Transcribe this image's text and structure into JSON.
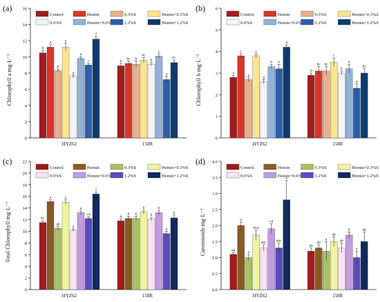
{
  "chart_data": [
    {
      "type": "bar",
      "panel_label": "(a)",
      "ylabel": "Chlorophyll a  mg·L⁻¹",
      "xlabel": "",
      "ylim": [
        0,
        16
      ],
      "yticks": [
        0,
        2,
        4,
        6,
        8,
        10,
        12,
        14,
        16
      ],
      "categories": [
        "HYZ62",
        "158R"
      ],
      "series": [
        {
          "name": "Control",
          "color": "#a31b1b",
          "values": [
            10.5,
            8.9
          ],
          "errors": [
            0.3,
            0.3
          ],
          "letters": [
            "d",
            "b"
          ]
        },
        {
          "name": "Hemin",
          "color": "#d9362b",
          "values": [
            11.2,
            9.2
          ],
          "errors": [
            0.3,
            0.3
          ],
          "letters": [
            "e",
            "bc"
          ]
        },
        {
          "name": "0.3%S",
          "color": "#e9b08a",
          "values": [
            8.3,
            9.1
          ],
          "errors": [
            0.2,
            0.4
          ],
          "letters": [
            "b",
            "b"
          ]
        },
        {
          "name": "Hemin+0.3%S",
          "color": "#fce58e",
          "values": [
            11.2,
            9.6
          ],
          "errors": [
            0.5,
            0.3
          ],
          "letters": [
            "e",
            "bc"
          ]
        },
        {
          "name": "0.6%S",
          "color": "#f0f5fa",
          "values": [
            7.6,
            9.1
          ],
          "errors": [
            0.2,
            0.2
          ],
          "letters": [
            "a",
            "b"
          ]
        },
        {
          "name": "Hemin+0.6%S",
          "color": "#92b2d9",
          "values": [
            9.8,
            10.1
          ],
          "errors": [
            0.2,
            0.3
          ],
          "letters": [
            "d",
            "c"
          ]
        },
        {
          "name": "1.2%S",
          "color": "#2e5fae",
          "values": [
            9.0,
            7.2
          ],
          "errors": [
            0.2,
            0.4
          ],
          "letters": [
            "c",
            "a"
          ]
        },
        {
          "name": "Hemin+1.2%S",
          "color": "#0d3b6d",
          "values": [
            12.2,
            9.3
          ],
          "errors": [
            0.3,
            0.3
          ],
          "letters": [
            "f",
            "bc"
          ]
        }
      ]
    },
    {
      "type": "bar",
      "panel_label": "(b)",
      "ylabel": "Chlorophyll b  mg·L⁻¹",
      "xlabel": "",
      "ylim": [
        0,
        6
      ],
      "yticks": [
        0,
        1,
        2,
        3,
        4,
        5,
        6
      ],
      "categories": [
        "HYZ62",
        "158R"
      ],
      "series": [
        {
          "name": "Control",
          "color": "#a31b1b",
          "values": [
            2.8,
            2.9
          ],
          "errors": [
            0.1,
            0.1
          ],
          "letters": [
            "a",
            "b"
          ]
        },
        {
          "name": "Hemin",
          "color": "#d9362b",
          "values": [
            3.8,
            3.1
          ],
          "errors": [
            0.1,
            0.2
          ],
          "letters": [
            "c",
            "bc"
          ]
        },
        {
          "name": "0.3%S",
          "color": "#e9b08a",
          "values": [
            2.7,
            3.1
          ],
          "errors": [
            0.1,
            0.2
          ],
          "letters": [
            "a",
            "bc"
          ]
        },
        {
          "name": "Hemin+0.3%S",
          "color": "#fce58e",
          "values": [
            3.8,
            3.5
          ],
          "errors": [
            0.1,
            0.2
          ],
          "letters": [
            "c",
            "c"
          ]
        },
        {
          "name": "0.6%S",
          "color": "#f0f5fa",
          "values": [
            2.6,
            3.0
          ],
          "errors": [
            0.1,
            0.1
          ],
          "letters": [
            "a",
            "b"
          ]
        },
        {
          "name": "Hemin+0.6%S",
          "color": "#92b2d9",
          "values": [
            3.3,
            3.2
          ],
          "errors": [
            0.1,
            0.2
          ],
          "letters": [
            "b",
            "b"
          ]
        },
        {
          "name": "1.2%S",
          "color": "#2e5fae",
          "values": [
            3.2,
            2.3
          ],
          "errors": [
            0.2,
            0.2
          ],
          "letters": [
            "b",
            "a"
          ]
        },
        {
          "name": "Hemin+1.2%S",
          "color": "#0d3b6d",
          "values": [
            4.2,
            3.0
          ],
          "errors": [
            0.1,
            0.2
          ],
          "letters": [
            "d",
            "bc"
          ]
        }
      ]
    },
    {
      "type": "bar",
      "panel_label": "(c)",
      "ylabel": "Total Chlorophyll  mg·L⁻¹",
      "xlabel": "",
      "ylim": [
        0,
        22
      ],
      "yticks": [
        0,
        2,
        4,
        6,
        8,
        10,
        12,
        14,
        16,
        18,
        20,
        22
      ],
      "categories": [
        "HYZ62",
        "158R"
      ],
      "series": [
        {
          "name": "Control",
          "color": "#a31b1b",
          "values": [
            11.5,
            11.8
          ],
          "errors": [
            0.3,
            0.3
          ],
          "letters": [
            "bc",
            "b"
          ]
        },
        {
          "name": "Hemin",
          "color": "#8a5a25",
          "values": [
            15.1,
            12.2
          ],
          "errors": [
            0.3,
            0.4
          ],
          "letters": [
            "e",
            "b"
          ]
        },
        {
          "name": "0.3%S",
          "color": "#a9c264",
          "values": [
            10.5,
            12.2
          ],
          "errors": [
            0.3,
            0.4
          ],
          "letters": [
            "ab",
            "b"
          ]
        },
        {
          "name": "Hemin+0.3%S",
          "color": "#eff5a0",
          "values": [
            15.0,
            13.3
          ],
          "errors": [
            0.4,
            0.3
          ],
          "letters": [
            "e",
            "b"
          ]
        },
        {
          "name": "0.6%S",
          "color": "#fbe3f3",
          "values": [
            10.2,
            12.1
          ],
          "errors": [
            0.2,
            0.3
          ],
          "letters": [
            "a",
            "b"
          ]
        },
        {
          "name": "Hemin+0.6%S",
          "color": "#c39be0",
          "values": [
            13.2,
            13.2
          ],
          "errors": [
            0.3,
            0.4
          ],
          "letters": [
            "d",
            "b"
          ]
        },
        {
          "name": "1.2%S",
          "color": "#5a4bc2",
          "values": [
            12.2,
            9.6
          ],
          "errors": [
            0.3,
            0.4
          ],
          "letters": [
            "cd",
            "a"
          ]
        },
        {
          "name": "Hemin+1.2%S",
          "color": "#0f2a5c",
          "values": [
            16.4,
            12.3
          ],
          "errors": [
            0.3,
            0.5
          ],
          "letters": [
            "f",
            "b"
          ]
        }
      ]
    },
    {
      "type": "bar",
      "panel_label": "(d)",
      "ylabel": "Carotenoids  mg·L⁻¹",
      "xlabel": "",
      "ylim": [
        0,
        4
      ],
      "yticks": [
        0.0,
        0.5,
        1.0,
        1.5,
        2.0,
        2.5,
        3.0,
        3.5,
        4.0
      ],
      "categories": [
        "HYZ62",
        "158R"
      ],
      "series": [
        {
          "name": "Control",
          "color": "#a31b1b",
          "values": [
            1.1,
            1.2
          ],
          "errors": [
            0.05,
            0.1
          ],
          "letters": [
            "ab",
            "ab"
          ]
        },
        {
          "name": "Hemin",
          "color": "#8a5a25",
          "values": [
            2.0,
            1.3
          ],
          "errors": [
            0.1,
            0.1
          ],
          "letters": [
            "d",
            "ab"
          ]
        },
        {
          "name": "0.3%S",
          "color": "#a9c264",
          "values": [
            1.0,
            1.2
          ],
          "errors": [
            0.1,
            0.3
          ],
          "letters": [
            "a",
            "a"
          ]
        },
        {
          "name": "Hemin+0.3%S",
          "color": "#eff5a0",
          "values": [
            1.7,
            1.5
          ],
          "errors": [
            0.15,
            0.15
          ],
          "letters": [
            "bcd",
            "ab"
          ]
        },
        {
          "name": "0.6%S",
          "color": "#fbe3f3",
          "values": [
            1.3,
            1.3
          ],
          "errors": [
            0.1,
            0.15
          ],
          "letters": [
            "abc",
            "ab"
          ]
        },
        {
          "name": "Hemin+0.6%S",
          "color": "#c39be0",
          "values": [
            1.9,
            1.7
          ],
          "errors": [
            0.15,
            0.1
          ],
          "letters": [
            "cd",
            "b"
          ]
        },
        {
          "name": "1.2%S",
          "color": "#5a4bc2",
          "values": [
            1.3,
            1.0
          ],
          "errors": [
            0.15,
            0.2
          ],
          "letters": [
            "abc",
            "a"
          ]
        },
        {
          "name": "Hemin+1.2%S",
          "color": "#0f2a5c",
          "values": [
            2.8,
            1.5
          ],
          "errors": [
            0.6,
            0.3
          ],
          "letters": [
            "e",
            "ab"
          ]
        }
      ]
    }
  ]
}
